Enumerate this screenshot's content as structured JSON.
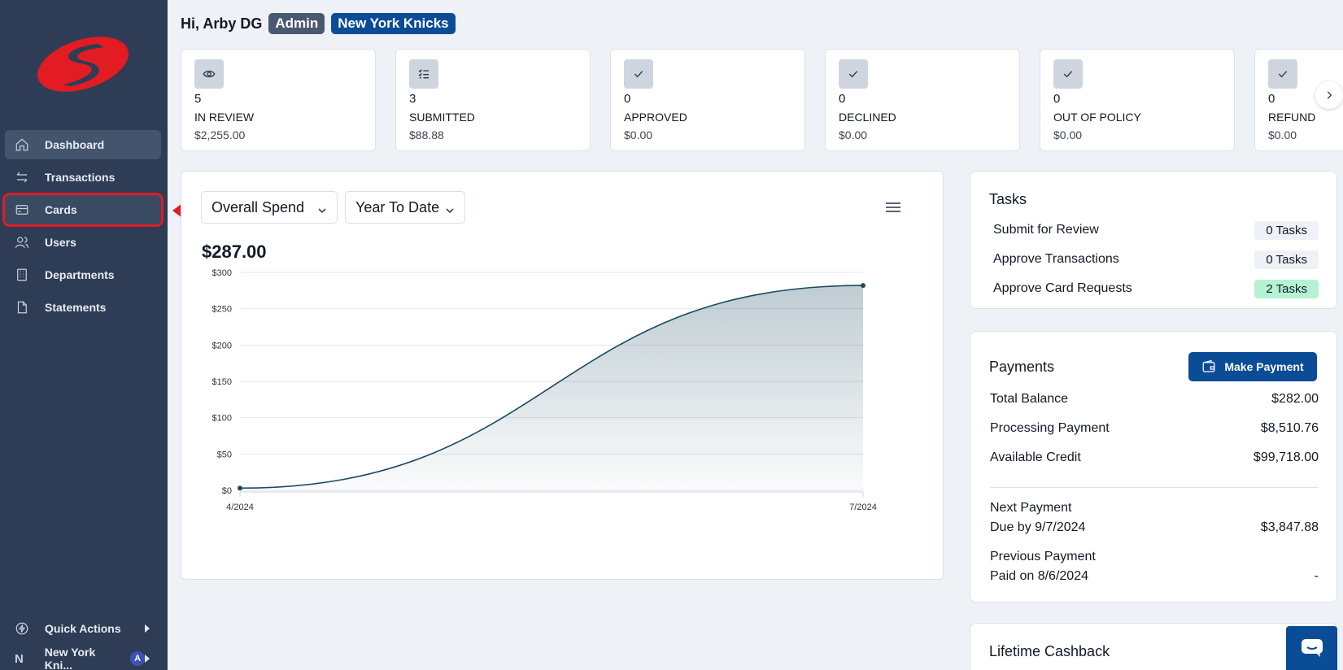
{
  "header": {
    "greeting": "Hi, Arby DG",
    "role_badge": "Admin",
    "org_badge": "New York Knicks"
  },
  "sidebar": {
    "items": [
      {
        "label": "Dashboard",
        "icon": "home-icon"
      },
      {
        "label": "Transactions",
        "icon": "transfer-icon"
      },
      {
        "label": "Cards",
        "icon": "card-icon"
      },
      {
        "label": "Users",
        "icon": "users-icon"
      },
      {
        "label": "Departments",
        "icon": "building-icon"
      },
      {
        "label": "Statements",
        "icon": "document-icon"
      }
    ],
    "quick_actions": "Quick Actions",
    "org_letter": "N",
    "org_name": "New York Kni...",
    "org_avatar": "A"
  },
  "stats": [
    {
      "count": "5",
      "label": "IN REVIEW",
      "amount": "$2,255.00",
      "icon": "eye-icon"
    },
    {
      "count": "3",
      "label": "SUBMITTED",
      "amount": "$88.88",
      "icon": "checklist-icon"
    },
    {
      "count": "0",
      "label": "APPROVED",
      "amount": "$0.00",
      "icon": "check-icon"
    },
    {
      "count": "0",
      "label": "DECLINED",
      "amount": "$0.00",
      "icon": "check-icon"
    },
    {
      "count": "0",
      "label": "OUT OF POLICY",
      "amount": "$0.00",
      "icon": "check-icon"
    },
    {
      "count": "0",
      "label": "REFUND",
      "amount": "$0.00",
      "icon": "check-icon"
    }
  ],
  "chart": {
    "metric_select": "Overall Spend",
    "range_select": "Year To Date",
    "total": "$287.00"
  },
  "chart_data": {
    "type": "area",
    "x": [
      "4/2024",
      "7/2024"
    ],
    "values": [
      3,
      282
    ],
    "yticks": [
      "$0",
      "$50",
      "$100",
      "$150",
      "$200",
      "$250",
      "$300"
    ],
    "ylim": [
      0,
      300
    ],
    "grid": true,
    "color": "#1a4a60"
  },
  "tasks": {
    "title": "Tasks",
    "rows": [
      {
        "label": "Submit for Review",
        "value": "0 Tasks"
      },
      {
        "label": "Approve Transactions",
        "value": "0 Tasks"
      },
      {
        "label": "Approve Card Requests",
        "value": "2 Tasks"
      }
    ]
  },
  "payments": {
    "title": "Payments",
    "button": "Make Payment",
    "total_balance_label": "Total Balance",
    "total_balance": "$282.00",
    "processing_label": "Processing Payment",
    "processing": "$8,510.76",
    "available_label": "Available Credit",
    "available": "$99,718.00",
    "next_label": "Next Payment",
    "next_due": "Due by 9/7/2024",
    "next_amount": "$3,847.88",
    "prev_label": "Previous Payment",
    "prev_paid": "Paid on 8/6/2024",
    "prev_amount": "-"
  },
  "cashback": {
    "title": "Lifetime Cashback"
  },
  "colors": {
    "sidebar": "#2e3d55",
    "brand": "#0b4c96",
    "highlight": "#e31b23"
  }
}
